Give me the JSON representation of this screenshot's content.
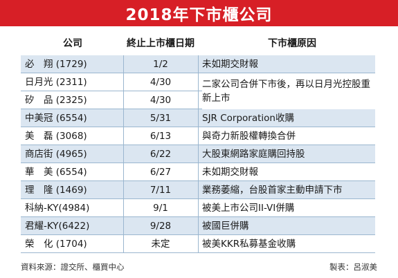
{
  "title": "2018年下市櫃公司",
  "headers": {
    "company": "公司",
    "date": "終止上市櫃日期",
    "reason": "下市櫃原因"
  },
  "rows": [
    {
      "company": "必　翔 (1729)",
      "date": "1/2",
      "reason": "未如期交財報"
    },
    {
      "company": "日月光 (2311)",
      "date": "4/30",
      "reason": ""
    },
    {
      "company": "矽　品 (2325)",
      "date": "4/30",
      "reason": ""
    },
    {
      "company": "中美冠 (6554)",
      "date": "5/31",
      "reason": "SJR Corporation收購"
    },
    {
      "company": "美　磊 (3068)",
      "date": "6/13",
      "reason": "與奇力新股權轉換合併"
    },
    {
      "company": "商店街 (4965)",
      "date": "6/22",
      "reason": "大股東網路家庭購回持股"
    },
    {
      "company": "華　美 (6554)",
      "date": "6/27",
      "reason": "未如期交財報"
    },
    {
      "company": "理　隆 (1469)",
      "date": "7/11",
      "reason": "業務萎縮，台股首家主動申請下市"
    },
    {
      "company": "科納-KY(4984)",
      "date": "9/1",
      "reason": "被美上市公司II-VI併購"
    },
    {
      "company": "君耀-KY(6422)",
      "date": "9/28",
      "reason": "被國巨併購"
    },
    {
      "company": "榮　化 (1704)",
      "date": "未定",
      "reason": "被美KKR私募基金收購"
    }
  ],
  "merged_reason": "二家公司合併下市後，再以日月光控股重新上市",
  "footer": {
    "source": "資料來源：證交所、櫃買中心",
    "maker": "製表：呂淑美"
  },
  "colors": {
    "title_bg": "#d71f26",
    "row_shade": "#dbe6f1",
    "rule": "#9ab6cf"
  }
}
